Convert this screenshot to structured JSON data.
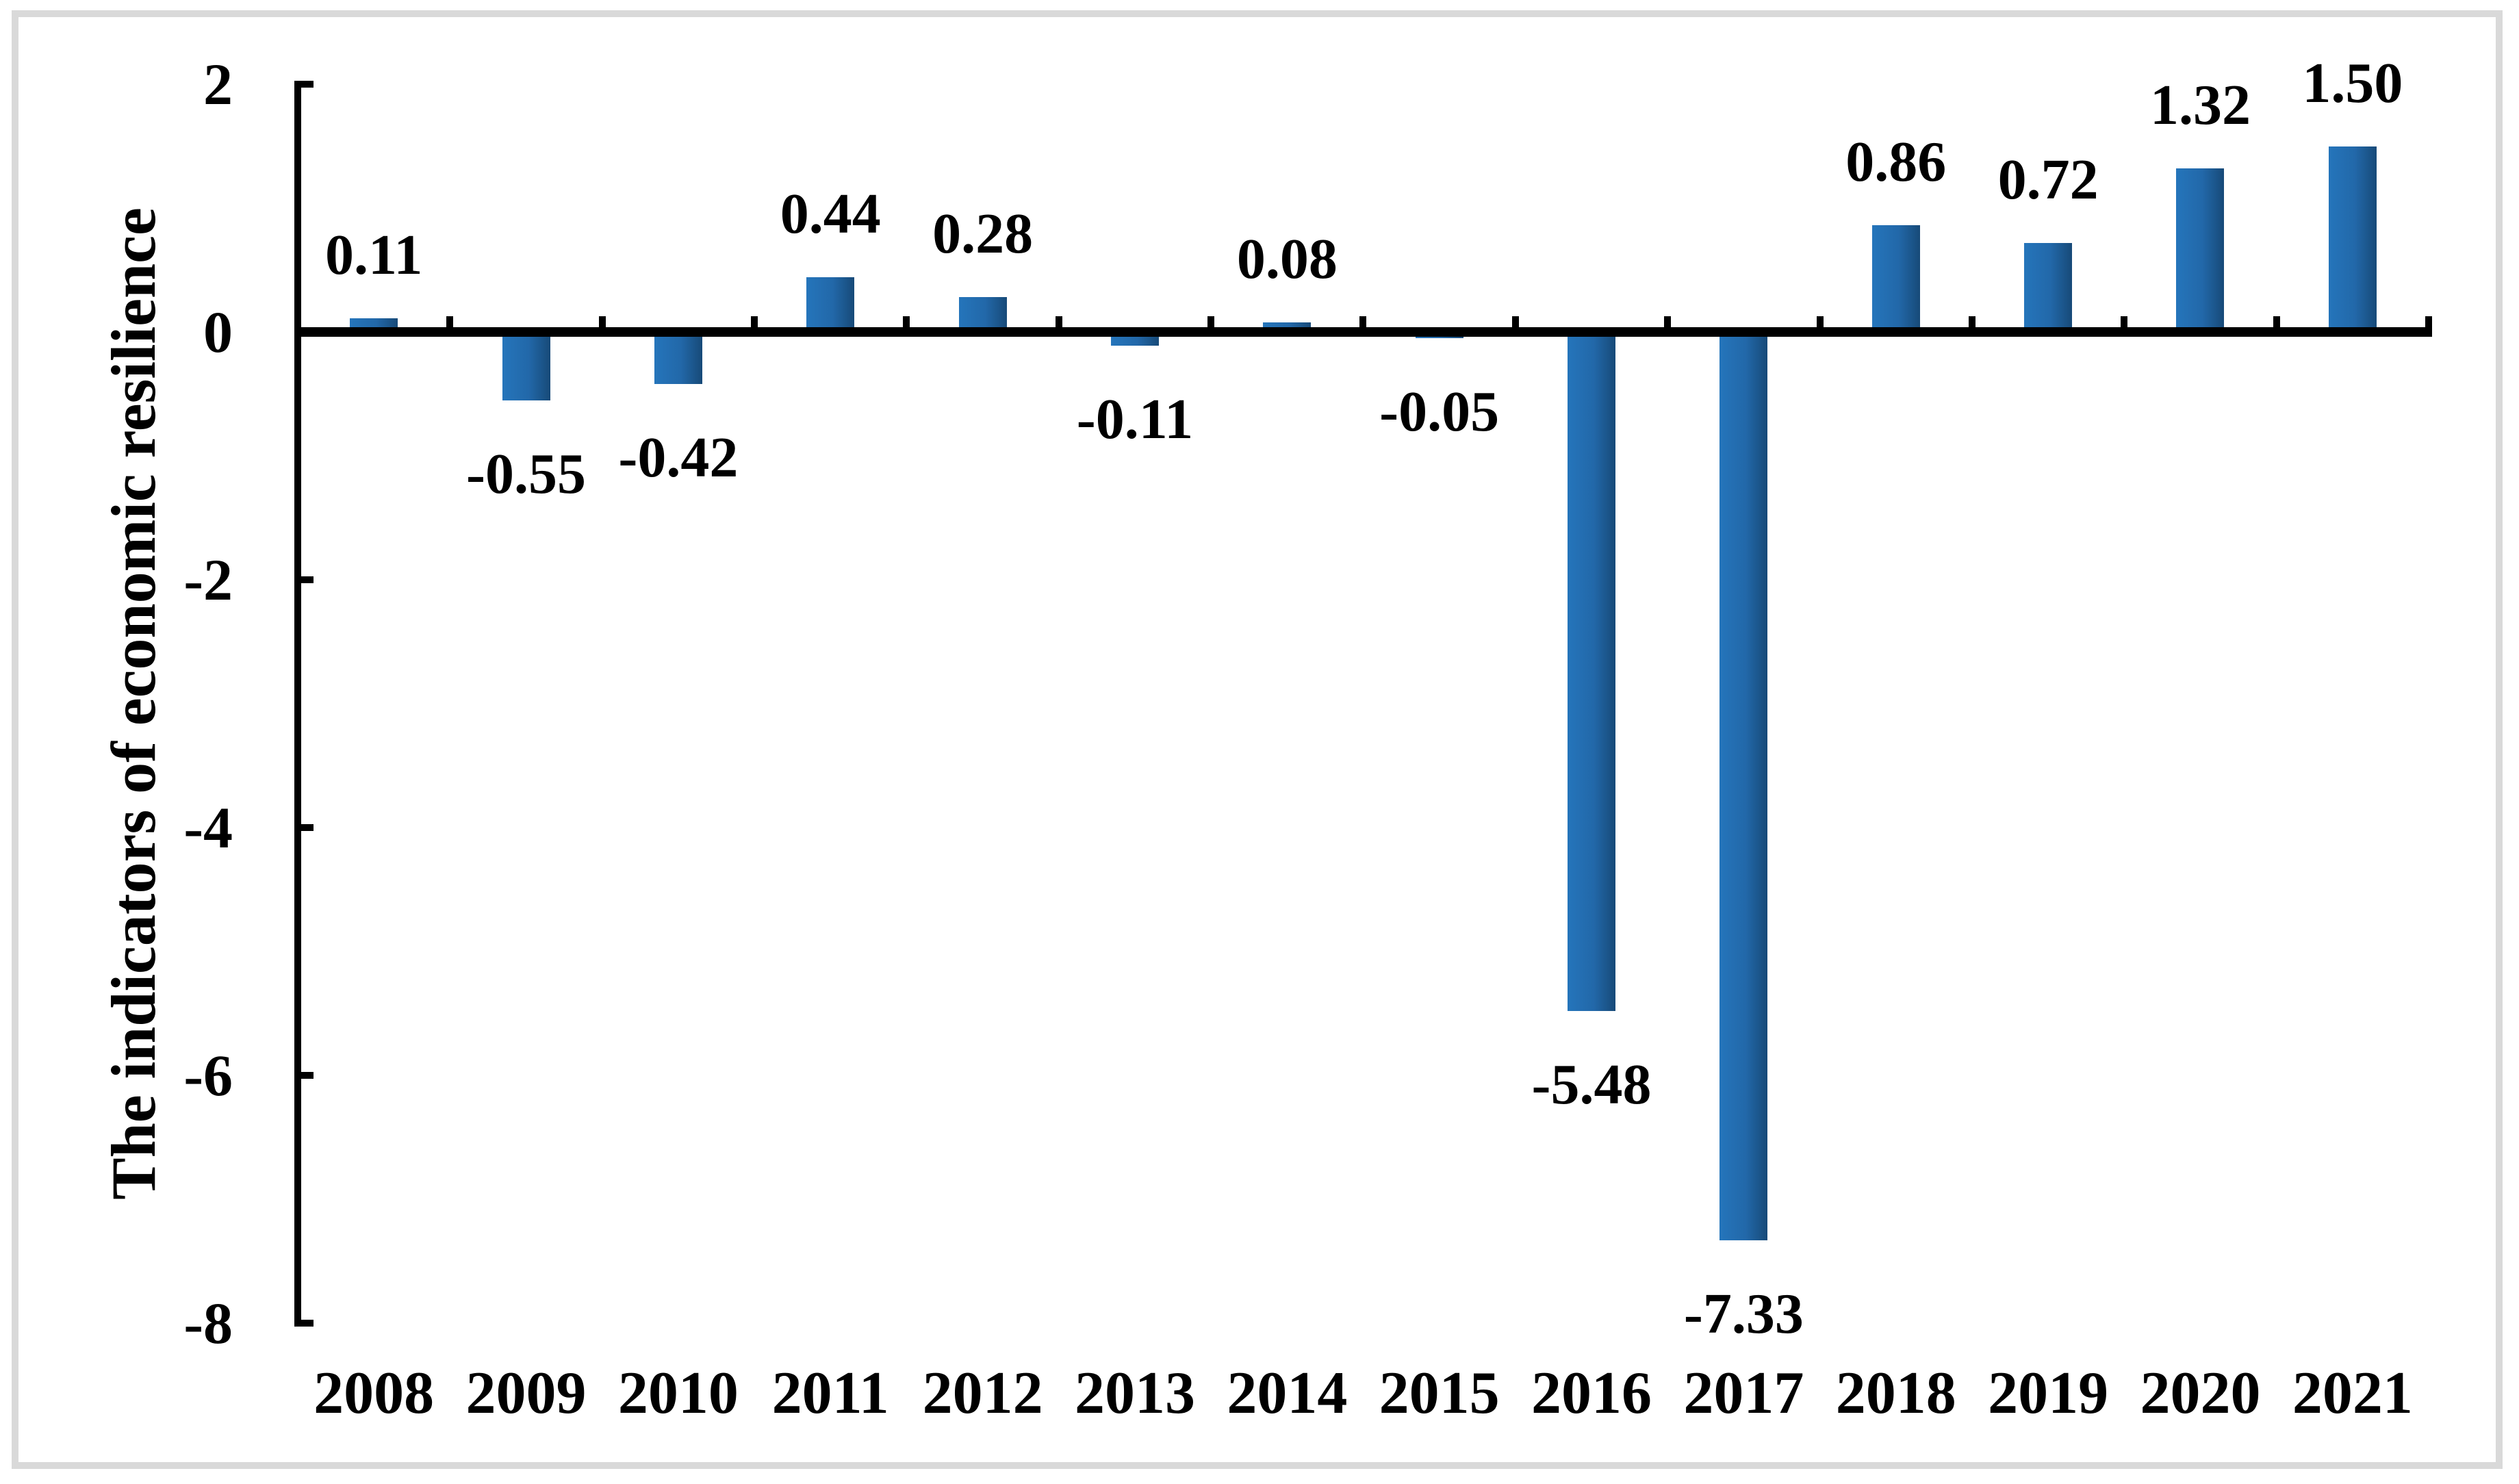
{
  "chart_data": {
    "type": "bar",
    "title": "",
    "ylabel": "The indicators of economic resilience",
    "xlabel": "",
    "categories": [
      "2008",
      "2009",
      "2010",
      "2011",
      "2012",
      "2013",
      "2014",
      "2015",
      "2016",
      "2017",
      "2018",
      "2019",
      "2020",
      "2021"
    ],
    "values": [
      0.11,
      -0.55,
      -0.42,
      0.44,
      0.28,
      -0.11,
      0.08,
      -0.05,
      -5.48,
      -7.33,
      0.86,
      0.72,
      1.32,
      1.5
    ],
    "data_labels": [
      "0.11",
      "-0.55",
      "-0.42",
      "0.44",
      "0.28",
      "-0.11",
      "0.08",
      "-0.05",
      "-5.48",
      "-7.33",
      "0.86",
      "0.72",
      "1.32",
      "1.50"
    ],
    "ylim": [
      -8,
      2
    ],
    "yticks": [
      2,
      0,
      -2,
      -4,
      -6,
      -8
    ],
    "ytick_labels": [
      "2",
      "0",
      "-2",
      "-4",
      "-6",
      "-8"
    ],
    "grid": "off",
    "legend": "none",
    "bar_color_left": "#2575bb",
    "bar_color_right": "#174a78",
    "axis_color": "#000000",
    "frame_color": "#d9d9d9"
  }
}
